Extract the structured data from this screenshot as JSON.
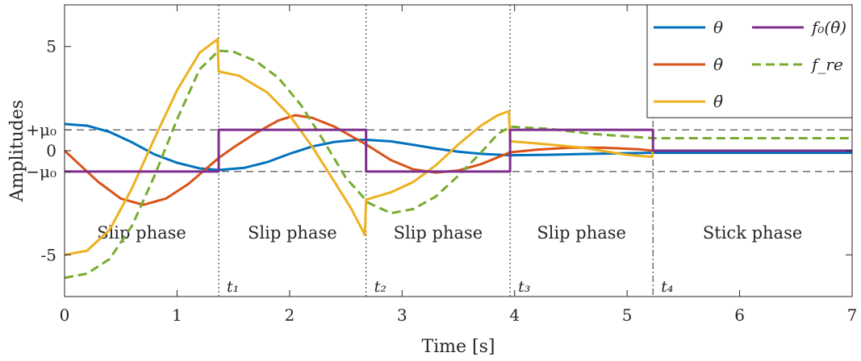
{
  "chart_data": {
    "type": "line",
    "title": "",
    "xlabel": "Time [s]",
    "ylabel": "Amplitudes",
    "xlim": [
      0,
      7
    ],
    "ylim": [
      -7,
      7
    ],
    "grid": false,
    "legend_position": "top-right",
    "x_ticks": [
      {
        "value": 0,
        "label": "0"
      },
      {
        "value": 1,
        "label": "1"
      },
      {
        "value": 2,
        "label": "2"
      },
      {
        "value": 3,
        "label": "3"
      },
      {
        "value": 4,
        "label": "4"
      },
      {
        "value": 5,
        "label": "5"
      },
      {
        "value": 6,
        "label": "6"
      },
      {
        "value": 7,
        "label": "7"
      }
    ],
    "y_ticks": [
      {
        "value": 5,
        "label": "5"
      },
      {
        "value": 1.0,
        "label": "+μ₀"
      },
      {
        "value": 0,
        "label": "0"
      },
      {
        "value": -1.0,
        "label": "−μ₀"
      },
      {
        "value": -5,
        "label": "-5"
      }
    ],
    "reference_lines": [
      {
        "y": 1.0,
        "style": "dashed",
        "label": "+μ₀"
      },
      {
        "y": -1.0,
        "style": "dashed",
        "label": "−μ₀"
      }
    ],
    "event_lines": [
      {
        "x": 1.37,
        "label": "t₁",
        "style": "dotted"
      },
      {
        "x": 2.68,
        "label": "t₂",
        "style": "dotted"
      },
      {
        "x": 3.96,
        "label": "t₃",
        "style": "dotted"
      },
      {
        "x": 5.23,
        "label": "t₄",
        "style": "dashdot"
      }
    ],
    "phases": [
      {
        "label": "Slip phase",
        "x": 0.685
      },
      {
        "label": "Slip phase",
        "x": 2.025
      },
      {
        "label": "Slip phase",
        "x": 3.32
      },
      {
        "label": "Slip phase",
        "x": 4.595
      },
      {
        "label": "Stick phase",
        "x": 6.115
      }
    ],
    "phase_label_y": -3.95,
    "series": [
      {
        "name": "θ",
        "color": "#0072BD",
        "dash": "solid",
        "points": [
          [
            0,
            1.28
          ],
          [
            0.2,
            1.2
          ],
          [
            0.4,
            0.9
          ],
          [
            0.6,
            0.4
          ],
          [
            0.8,
            -0.18
          ],
          [
            1.0,
            -0.58
          ],
          [
            1.2,
            -0.85
          ],
          [
            1.37,
            -0.93
          ],
          [
            1.6,
            -0.82
          ],
          [
            1.8,
            -0.55
          ],
          [
            2.0,
            -0.15
          ],
          [
            2.2,
            0.2
          ],
          [
            2.4,
            0.42
          ],
          [
            2.6,
            0.52
          ],
          [
            2.68,
            0.52
          ],
          [
            2.9,
            0.45
          ],
          [
            3.1,
            0.28
          ],
          [
            3.3,
            0.1
          ],
          [
            3.5,
            -0.05
          ],
          [
            3.7,
            -0.15
          ],
          [
            3.96,
            -0.22
          ],
          [
            4.3,
            -0.2
          ],
          [
            4.6,
            -0.16
          ],
          [
            5.0,
            -0.12
          ],
          [
            5.23,
            -0.1
          ],
          [
            7,
            -0.1
          ]
        ]
      },
      {
        "name": "θ̇",
        "color": "#D95319",
        "dash": "solid",
        "points": [
          [
            0,
            0
          ],
          [
            0.1,
            -0.5
          ],
          [
            0.3,
            -1.5
          ],
          [
            0.5,
            -2.3
          ],
          [
            0.7,
            -2.6
          ],
          [
            0.9,
            -2.3
          ],
          [
            1.1,
            -1.6
          ],
          [
            1.37,
            -0.35
          ],
          [
            1.5,
            0.15
          ],
          [
            1.7,
            0.85
          ],
          [
            1.9,
            1.45
          ],
          [
            2.05,
            1.7
          ],
          [
            2.2,
            1.58
          ],
          [
            2.4,
            1.15
          ],
          [
            2.68,
            0.3
          ],
          [
            2.9,
            -0.45
          ],
          [
            3.1,
            -0.9
          ],
          [
            3.3,
            -1.05
          ],
          [
            3.5,
            -0.95
          ],
          [
            3.7,
            -0.65
          ],
          [
            3.96,
            -0.08
          ],
          [
            4.2,
            0.05
          ],
          [
            4.5,
            0.15
          ],
          [
            4.8,
            0.14
          ],
          [
            5.1,
            0.07
          ],
          [
            5.23,
            0
          ],
          [
            7,
            0
          ]
        ]
      },
      {
        "name": "θ̈",
        "color": "#EDB120",
        "dash": "solid",
        "points": [
          [
            0,
            -5.0
          ],
          [
            0.2,
            -4.8
          ],
          [
            0.4,
            -3.8
          ],
          [
            0.6,
            -1.8
          ],
          [
            0.8,
            0.6
          ],
          [
            1.0,
            2.9
          ],
          [
            1.2,
            4.7
          ],
          [
            1.36,
            5.35
          ],
          [
            1.37,
            3.8
          ],
          [
            1.55,
            3.6
          ],
          [
            1.8,
            2.8
          ],
          [
            2.0,
            1.7
          ],
          [
            2.2,
            0.2
          ],
          [
            2.4,
            -1.5
          ],
          [
            2.55,
            -2.8
          ],
          [
            2.67,
            -4.05
          ],
          [
            2.68,
            -2.35
          ],
          [
            2.9,
            -2.0
          ],
          [
            3.1,
            -1.5
          ],
          [
            3.3,
            -0.7
          ],
          [
            3.5,
            0.3
          ],
          [
            3.7,
            1.2
          ],
          [
            3.85,
            1.7
          ],
          [
            3.95,
            1.9
          ],
          [
            3.96,
            0.45
          ],
          [
            4.2,
            0.35
          ],
          [
            4.6,
            0.15
          ],
          [
            5.0,
            -0.2
          ],
          [
            5.22,
            -0.3
          ],
          [
            5.23,
            0
          ],
          [
            7,
            0
          ]
        ]
      },
      {
        "name": "f₀(θ̇)",
        "color": "#7E2F8E",
        "dash": "solid",
        "points": [
          [
            0,
            -1.0
          ],
          [
            1.37,
            -1.0
          ],
          [
            1.37,
            1.0
          ],
          [
            2.68,
            1.0
          ],
          [
            2.68,
            -1.0
          ],
          [
            3.96,
            -1.0
          ],
          [
            3.96,
            1.0
          ],
          [
            5.23,
            1.0
          ],
          [
            5.23,
            0
          ],
          [
            7,
            0
          ]
        ]
      },
      {
        "name": "f_re",
        "color": "#77AC30",
        "dash": "dashed",
        "points": [
          [
            0,
            -6.1
          ],
          [
            0.2,
            -5.9
          ],
          [
            0.4,
            -5.2
          ],
          [
            0.6,
            -3.6
          ],
          [
            0.8,
            -1.2
          ],
          [
            1.0,
            1.5
          ],
          [
            1.2,
            3.9
          ],
          [
            1.37,
            4.8
          ],
          [
            1.5,
            4.75
          ],
          [
            1.7,
            4.3
          ],
          [
            1.9,
            3.5
          ],
          [
            2.1,
            2.2
          ],
          [
            2.3,
            0.5
          ],
          [
            2.5,
            -1.3
          ],
          [
            2.7,
            -2.5
          ],
          [
            2.9,
            -3.0
          ],
          [
            3.1,
            -2.8
          ],
          [
            3.3,
            -2.2
          ],
          [
            3.5,
            -1.2
          ],
          [
            3.7,
            -0.1
          ],
          [
            3.85,
            0.8
          ],
          [
            3.96,
            1.15
          ],
          [
            4.3,
            1.05
          ],
          [
            4.7,
            0.8
          ],
          [
            5.23,
            0.6
          ],
          [
            7,
            0.6
          ]
        ]
      }
    ]
  }
}
